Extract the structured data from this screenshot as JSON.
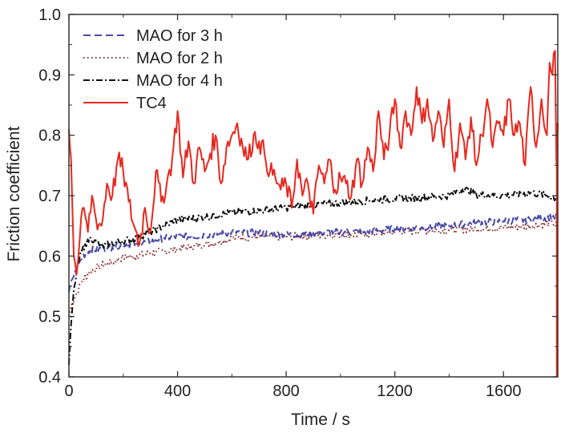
{
  "chart_data": {
    "type": "line",
    "title": "",
    "xlabel": "Time / s",
    "ylabel": "Friction coefficient",
    "xlim": [
      0,
      1800
    ],
    "ylim": [
      0.4,
      1.0
    ],
    "xticks": [
      0,
      400,
      800,
      1200,
      1600
    ],
    "xtick_labels": [
      "0",
      "400",
      "800",
      "1200",
      "1600"
    ],
    "yticks": [
      0.4,
      0.5,
      0.6,
      0.7,
      0.8,
      0.9,
      1.0
    ],
    "ytick_labels": [
      "0.4",
      "0.5",
      "0.6",
      "0.7",
      "0.8",
      "0.9",
      "1.0"
    ],
    "legend_position": "top-left",
    "series": [
      {
        "name": "MAO for 3 h",
        "color": "#4a4aa8",
        "style": "dashed",
        "x": [
          0,
          10,
          30,
          50,
          80,
          120,
          160,
          200,
          250,
          300,
          350,
          400,
          450,
          500,
          550,
          600,
          700,
          800,
          900,
          1000,
          1100,
          1200,
          1300,
          1400,
          1500,
          1600,
          1700,
          1780,
          1800
        ],
        "y": [
          0.54,
          0.56,
          0.58,
          0.6,
          0.61,
          0.612,
          0.615,
          0.62,
          0.62,
          0.625,
          0.63,
          0.632,
          0.632,
          0.635,
          0.636,
          0.64,
          0.638,
          0.635,
          0.638,
          0.64,
          0.64,
          0.645,
          0.648,
          0.65,
          0.655,
          0.658,
          0.66,
          0.665,
          0.665
        ]
      },
      {
        "name": "MAO for 2 h",
        "color": "#8b2a2a",
        "style": "dotted",
        "x": [
          0,
          10,
          30,
          50,
          80,
          120,
          160,
          200,
          250,
          300,
          350,
          400,
          450,
          500,
          550,
          600,
          700,
          800,
          900,
          1000,
          1100,
          1200,
          1300,
          1400,
          1500,
          1600,
          1700,
          1780,
          1800
        ],
        "y": [
          0.5,
          0.52,
          0.54,
          0.56,
          0.575,
          0.585,
          0.59,
          0.598,
          0.6,
          0.605,
          0.608,
          0.612,
          0.615,
          0.62,
          0.622,
          0.63,
          0.632,
          0.632,
          0.634,
          0.635,
          0.636,
          0.64,
          0.642,
          0.643,
          0.645,
          0.647,
          0.65,
          0.655,
          0.655
        ]
      },
      {
        "name": "MAO for 4 h",
        "color": "#111111",
        "style": "dashdot",
        "x": [
          0,
          10,
          20,
          40,
          60,
          80,
          100,
          120,
          150,
          200,
          250,
          300,
          350,
          400,
          450,
          500,
          600,
          700,
          800,
          900,
          1000,
          1100,
          1200,
          1300,
          1400,
          1450,
          1500,
          1600,
          1700,
          1760,
          1800
        ],
        "y": [
          0.42,
          0.5,
          0.55,
          0.6,
          0.62,
          0.63,
          0.625,
          0.615,
          0.62,
          0.625,
          0.63,
          0.64,
          0.65,
          0.66,
          0.662,
          0.665,
          0.672,
          0.675,
          0.68,
          0.685,
          0.688,
          0.692,
          0.695,
          0.697,
          0.7,
          0.712,
          0.702,
          0.7,
          0.705,
          0.7,
          0.695
        ]
      },
      {
        "name": "TC4",
        "color": "#e8281e",
        "style": "solid",
        "x": [
          0,
          8,
          18,
          28,
          40,
          55,
          70,
          85,
          100,
          120,
          140,
          160,
          180,
          200,
          220,
          240,
          260,
          280,
          300,
          320,
          340,
          360,
          380,
          400,
          420,
          440,
          460,
          480,
          500,
          520,
          540,
          560,
          580,
          600,
          620,
          640,
          660,
          680,
          700,
          720,
          740,
          760,
          780,
          800,
          820,
          840,
          860,
          880,
          900,
          920,
          940,
          960,
          980,
          1000,
          1020,
          1040,
          1060,
          1080,
          1100,
          1120,
          1140,
          1160,
          1180,
          1200,
          1220,
          1240,
          1260,
          1280,
          1300,
          1320,
          1340,
          1360,
          1380,
          1400,
          1420,
          1440,
          1460,
          1480,
          1500,
          1520,
          1540,
          1560,
          1580,
          1600,
          1620,
          1640,
          1660,
          1680,
          1700,
          1720,
          1740,
          1760,
          1770,
          1780,
          1790,
          1795,
          1800
        ],
        "y": [
          0.81,
          0.76,
          0.6,
          0.57,
          0.63,
          0.68,
          0.64,
          0.7,
          0.66,
          0.65,
          0.72,
          0.7,
          0.76,
          0.74,
          0.69,
          0.65,
          0.62,
          0.68,
          0.64,
          0.74,
          0.69,
          0.72,
          0.76,
          0.84,
          0.73,
          0.79,
          0.72,
          0.78,
          0.74,
          0.77,
          0.8,
          0.72,
          0.78,
          0.8,
          0.82,
          0.78,
          0.76,
          0.8,
          0.79,
          0.77,
          0.74,
          0.73,
          0.71,
          0.72,
          0.68,
          0.76,
          0.7,
          0.72,
          0.67,
          0.75,
          0.72,
          0.76,
          0.71,
          0.73,
          0.72,
          0.7,
          0.76,
          0.72,
          0.78,
          0.74,
          0.84,
          0.76,
          0.8,
          0.86,
          0.78,
          0.84,
          0.8,
          0.88,
          0.82,
          0.86,
          0.79,
          0.84,
          0.78,
          0.86,
          0.74,
          0.82,
          0.76,
          0.83,
          0.75,
          0.8,
          0.86,
          0.78,
          0.82,
          0.8,
          0.86,
          0.8,
          0.82,
          0.75,
          0.88,
          0.78,
          0.86,
          0.8,
          0.92,
          0.9,
          0.94,
          0.75,
          0.82
        ]
      }
    ]
  }
}
